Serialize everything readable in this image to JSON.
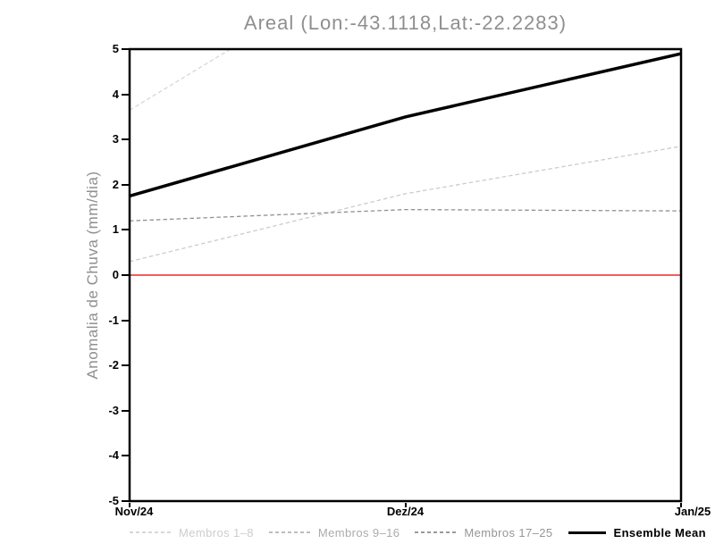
{
  "chart_data": {
    "type": "line",
    "title": "Areal (Lon:-43.1118,Lat:-22.2283)",
    "ylabel": "Anomalia de Chuva (mm/dia)",
    "xlabel": "",
    "ylim": [
      -5,
      5
    ],
    "y_ticks": [
      5,
      4,
      3,
      2,
      1,
      0,
      -1,
      -2,
      -3,
      -4,
      -5
    ],
    "x_tick_labels": [
      "Nov/24",
      "Dez/24",
      "Jan/25"
    ],
    "x_tick_positions": [
      0,
      1,
      2
    ],
    "grid": false,
    "legend_position": "bottom",
    "frame_color": "#000000",
    "series": [
      {
        "name": "Membros 1-8",
        "color": "#d7d7d7",
        "style": "dashed",
        "width": 1.3,
        "points": [
          [
            0,
            3.65
          ],
          [
            0.42,
            5.2
          ]
        ]
      },
      {
        "name": "Membros 9-16",
        "color": "#cccccc",
        "style": "dashed",
        "width": 1.3,
        "points": [
          [
            0,
            0.3
          ],
          [
            1,
            1.8
          ],
          [
            2,
            2.85
          ]
        ]
      },
      {
        "name": "Membros 17-25",
        "color": "#909090",
        "style": "dashed",
        "width": 1.3,
        "points": [
          [
            0,
            1.2
          ],
          [
            1,
            1.45
          ],
          [
            2,
            1.42
          ]
        ]
      },
      {
        "name": "Zero line",
        "color": "#fa5a5a",
        "style": "solid",
        "width": 2,
        "points": [
          [
            0,
            0
          ],
          [
            2,
            0
          ]
        ]
      },
      {
        "name": "Ensemble Mean",
        "color": "#000000",
        "style": "solid",
        "width": 3.5,
        "points": [
          [
            0,
            1.75
          ],
          [
            1,
            3.5
          ],
          [
            2,
            4.9
          ]
        ]
      }
    ],
    "legend": [
      {
        "label": "Membros 1–8",
        "sample": "dashed",
        "color": "#d7d7d7",
        "label_color": "#cdcdcd",
        "bold": false
      },
      {
        "label": "Membros 9–16",
        "sample": "dashed",
        "color": "#bdbdbd",
        "label_color": "#ababab",
        "bold": false
      },
      {
        "label": "Membros 17–25",
        "sample": "dashed",
        "color": "#9a9a9a",
        "label_color": "#969696",
        "bold": false
      },
      {
        "label": "Ensemble Mean",
        "sample": "solid",
        "color": "#000000",
        "label_color": "#000000",
        "bold": true
      }
    ]
  }
}
